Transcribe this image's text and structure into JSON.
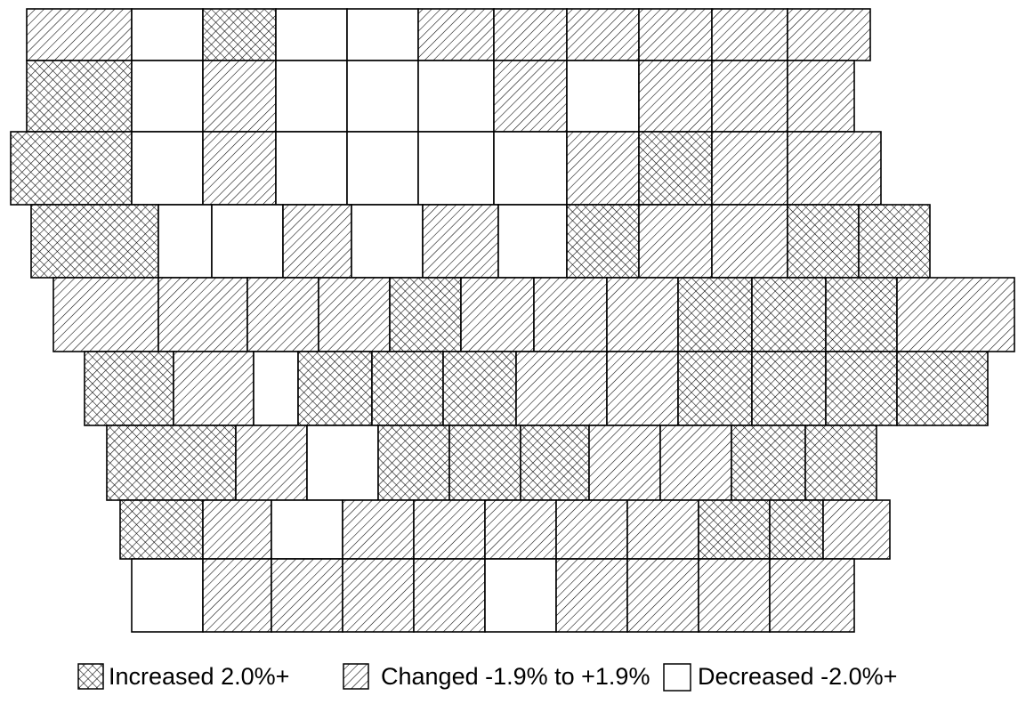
{
  "legend": {
    "items": [
      {
        "label": "Increased 2.0%+"
      },
      {
        "label": "Changed -1.9% to +1.9%"
      },
      {
        "label": "Decreased -2.0%+"
      }
    ]
  }
}
